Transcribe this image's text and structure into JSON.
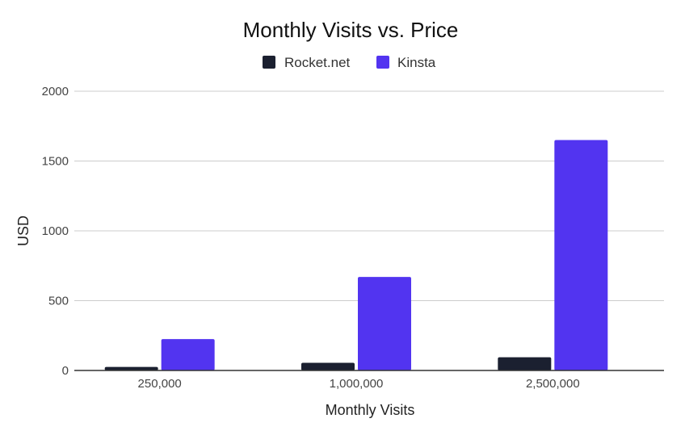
{
  "chart_data": {
    "type": "bar",
    "title": "Monthly Visits vs. Price",
    "xlabel": "Monthly Visits",
    "ylabel": "USD",
    "categories": [
      "250,000",
      "1,000,000",
      "2,500,000"
    ],
    "series": [
      {
        "name": "Rocket.net",
        "color": "#1b2030",
        "values": [
          25,
          55,
          95
        ]
      },
      {
        "name": "Kinsta",
        "color": "#5234f0",
        "values": [
          225,
          670,
          1650
        ]
      }
    ],
    "ylim": [
      0,
      2000
    ],
    "yticks": [
      "0",
      "500",
      "1000",
      "1500",
      "2000"
    ],
    "grid": true,
    "legend_position": "top"
  }
}
